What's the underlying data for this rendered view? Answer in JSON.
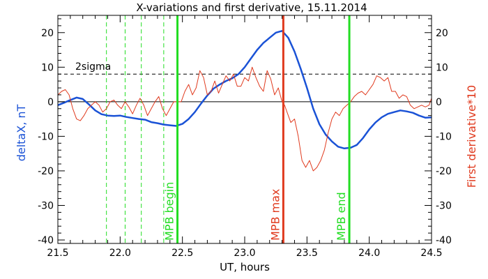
{
  "chart_data": {
    "type": "line",
    "title": "X-variations and first derivative, 15.11.2014",
    "xlabel": "UT, hours",
    "ylabel_left": "deltaX, nT",
    "ylabel_right": "First derivative*10",
    "xlim": [
      21.5,
      24.5
    ],
    "ylim": [
      -41,
      25
    ],
    "xticks": [
      21.5,
      22.0,
      22.5,
      23.0,
      23.5,
      24.0,
      24.5
    ],
    "xtick_labels": [
      "21.5",
      "22.0",
      "22.5",
      "23.0",
      "23.5",
      "24.0",
      "24.5"
    ],
    "yticks": [
      20,
      10,
      0,
      -10,
      -20,
      -30,
      -40
    ],
    "ytick_labels": [
      "20",
      "10",
      "0",
      "-10",
      "-20",
      "-30",
      "-40"
    ],
    "colors": {
      "deltaX": "#1a52d6",
      "derivative": "#e03a1e",
      "mpb": "#22dd22",
      "mpb_max": "#e03a1e",
      "sigma": "#000000"
    },
    "sigma": {
      "label": "2sigma",
      "value": 8
    },
    "dashed_markers": [
      21.89,
      22.04,
      22.17,
      22.35
    ],
    "markers": [
      {
        "x": 22.46,
        "label": "MPB begin",
        "role": "mpb"
      },
      {
        "x": 23.31,
        "label": "MPB max",
        "role": "mpb_max"
      },
      {
        "x": 23.84,
        "label": "MPB end",
        "role": "mpb"
      }
    ],
    "series": [
      {
        "key": "deltaX",
        "x": [
          21.5,
          21.55,
          21.6,
          21.65,
          21.7,
          21.75,
          21.8,
          21.85,
          21.9,
          21.95,
          22.0,
          22.05,
          22.1,
          22.15,
          22.2,
          22.25,
          22.3,
          22.35,
          22.4,
          22.45,
          22.5,
          22.55,
          22.6,
          22.65,
          22.7,
          22.75,
          22.8,
          22.85,
          22.9,
          22.95,
          23.0,
          23.05,
          23.1,
          23.15,
          23.2,
          23.25,
          23.3,
          23.35,
          23.4,
          23.45,
          23.5,
          23.55,
          23.6,
          23.65,
          23.7,
          23.75,
          23.8,
          23.85,
          23.9,
          23.95,
          24.0,
          24.05,
          24.1,
          24.15,
          24.2,
          24.25,
          24.3,
          24.35,
          24.4,
          24.45,
          24.5
        ],
        "values": [
          -1,
          -0.3,
          0.5,
          1.2,
          0.8,
          -0.8,
          -2.5,
          -3.6,
          -4.0,
          -4.1,
          -4.0,
          -4.4,
          -4.7,
          -5.0,
          -5.2,
          -5.9,
          -6.2,
          -6.6,
          -6.8,
          -7.0,
          -6.4,
          -5.0,
          -3.0,
          -0.5,
          1.8,
          3.8,
          5.0,
          6.0,
          6.8,
          8.0,
          10.0,
          12.5,
          15.0,
          17.0,
          18.5,
          20.0,
          20.5,
          18.5,
          14.5,
          9.5,
          4.0,
          -2.0,
          -6.5,
          -9.5,
          -11.5,
          -13.0,
          -13.5,
          -13.3,
          -12.5,
          -10.5,
          -8.0,
          -6.0,
          -4.5,
          -3.5,
          -3.0,
          -2.5,
          -2.8,
          -3.2,
          -4.0,
          -4.6,
          -4.5
        ]
      },
      {
        "key": "derivative",
        "x": [
          21.5,
          21.53,
          21.56,
          21.59,
          21.62,
          21.65,
          21.68,
          21.71,
          21.74,
          21.77,
          21.8,
          21.83,
          21.86,
          21.89,
          21.92,
          21.95,
          21.98,
          22.01,
          22.04,
          22.07,
          22.1,
          22.13,
          22.16,
          22.19,
          22.22,
          22.25,
          22.28,
          22.31,
          22.34,
          22.37,
          22.4,
          22.43,
          22.46,
          22.49,
          22.52,
          22.55,
          22.58,
          22.61,
          22.64,
          22.67,
          22.7,
          22.73,
          22.76,
          22.79,
          22.82,
          22.85,
          22.88,
          22.91,
          22.94,
          22.97,
          23.0,
          23.03,
          23.06,
          23.09,
          23.12,
          23.15,
          23.18,
          23.21,
          23.24,
          23.27,
          23.3,
          23.32,
          23.34,
          23.37,
          23.4,
          23.43,
          23.46,
          23.49,
          23.52,
          23.55,
          23.58,
          23.61,
          23.64,
          23.67,
          23.7,
          23.73,
          23.76,
          23.79,
          23.82,
          23.85,
          23.88,
          23.91,
          23.94,
          23.97,
          24.0,
          24.03,
          24.06,
          24.09,
          24.12,
          24.15,
          24.18,
          24.21,
          24.24,
          24.27,
          24.3,
          24.33,
          24.36,
          24.39,
          24.42,
          24.45,
          24.48,
          24.5
        ],
        "values": [
          2,
          3,
          3.5,
          2,
          -2,
          -5,
          -5.5,
          -4,
          -2,
          -1,
          0,
          -1,
          -3,
          -2,
          0,
          0.5,
          -1,
          -2,
          0,
          -1.5,
          -3.5,
          -1,
          1,
          -1,
          -4,
          -2,
          0,
          1.5,
          -2,
          -4,
          -2,
          0,
          0,
          0,
          3,
          5,
          2,
          4,
          9,
          7,
          2,
          3,
          6,
          2.5,
          5,
          7.5,
          6,
          8,
          4.5,
          4.5,
          7,
          6,
          10,
          7,
          4.5,
          3,
          9,
          6.5,
          2,
          4,
          0,
          -1,
          -3,
          -6,
          -5,
          -10,
          -17,
          -19,
          -17,
          -20,
          -19,
          -17,
          -14,
          -9,
          -5,
          -3,
          -4,
          -2,
          -1,
          0,
          1.5,
          2.5,
          3,
          2,
          3.5,
          5,
          7.5,
          7,
          6,
          7,
          3,
          3,
          1,
          2,
          1.5,
          -1,
          -2,
          -1.5,
          -1,
          -1.5,
          -1,
          1
        ]
      }
    ]
  }
}
